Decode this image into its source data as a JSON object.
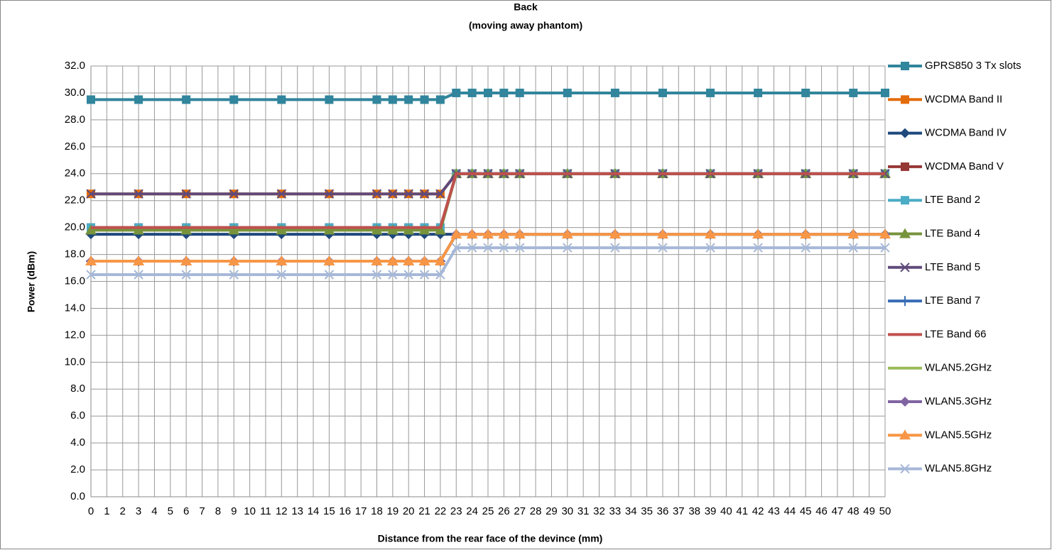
{
  "chart_data": {
    "type": "line",
    "title": "Back",
    "subtitle": "(moving away phantom)",
    "x_label": "Distance from the rear face of the devince (mm)",
    "y_label": "Power (dBm)",
    "x": [
      0,
      3,
      6,
      9,
      12,
      15,
      18,
      19,
      20,
      21,
      22,
      23,
      24,
      25,
      26,
      27,
      30,
      33,
      36,
      39,
      42,
      45,
      48,
      50
    ],
    "xlim": [
      0,
      50
    ],
    "xticks": [
      0,
      1,
      2,
      3,
      4,
      5,
      6,
      7,
      8,
      9,
      10,
      11,
      12,
      13,
      14,
      15,
      16,
      17,
      18,
      19,
      20,
      21,
      22,
      23,
      24,
      25,
      26,
      27,
      28,
      29,
      30,
      31,
      32,
      33,
      34,
      35,
      36,
      37,
      38,
      39,
      40,
      41,
      42,
      43,
      44,
      45,
      46,
      47,
      48,
      49,
      50
    ],
    "ylim": [
      0,
      32
    ],
    "yticks": [
      {
        "value": 0,
        "label": "0.0"
      },
      {
        "value": 2,
        "label": "2.0"
      },
      {
        "value": 4,
        "label": "4.0"
      },
      {
        "value": 6,
        "label": "6.0"
      },
      {
        "value": 8,
        "label": "8.0"
      },
      {
        "value": 10,
        "label": "10.0"
      },
      {
        "value": 12,
        "label": "12.0"
      },
      {
        "value": 14,
        "label": "14.0"
      },
      {
        "value": 16,
        "label": "16.0"
      },
      {
        "value": 18,
        "label": "18.0"
      },
      {
        "value": 20,
        "label": "20.0"
      },
      {
        "value": 22,
        "label": "22.0"
      },
      {
        "value": 24,
        "label": "24.0"
      },
      {
        "value": 26,
        "label": "26.0"
      },
      {
        "value": 28,
        "label": "28.0"
      },
      {
        "value": 30,
        "label": "30.0"
      },
      {
        "value": 32,
        "label": "32.0"
      }
    ],
    "grid": true,
    "legend": "right",
    "series": [
      {
        "name": "GPRS850 3 Tx slots",
        "color": "#31859c",
        "marker": "square",
        "values": [
          29.5,
          29.5,
          29.5,
          29.5,
          29.5,
          29.5,
          29.5,
          29.5,
          29.5,
          29.5,
          29.5,
          30,
          30,
          30,
          30,
          30,
          30,
          30,
          30,
          30,
          30,
          30,
          30,
          30
        ]
      },
      {
        "name": "WCDMA Band II",
        "color": "#e36c09",
        "marker": "square",
        "values": [
          22.5,
          22.5,
          22.5,
          22.5,
          22.5,
          22.5,
          22.5,
          22.5,
          22.5,
          22.5,
          22.5,
          24,
          24,
          24,
          24,
          24,
          24,
          24,
          24,
          24,
          24,
          24,
          24,
          24
        ]
      },
      {
        "name": "WCDMA Band IV",
        "color": "#1f497d",
        "marker": "diamond",
        "values": [
          19.5,
          19.5,
          19.5,
          19.5,
          19.5,
          19.5,
          19.5,
          19.5,
          19.5,
          19.5,
          19.5,
          19.5,
          19.5,
          19.5,
          19.5,
          19.5,
          19.5,
          19.5,
          19.5,
          19.5,
          19.5,
          19.5,
          19.5,
          19.5
        ]
      },
      {
        "name": "WCDMA Band V",
        "color": "#953735",
        "marker": "square",
        "values": [
          20,
          20,
          20,
          20,
          20,
          20,
          20,
          20,
          20,
          20,
          20,
          24,
          24,
          24,
          24,
          24,
          24,
          24,
          24,
          24,
          24,
          24,
          24,
          24
        ]
      },
      {
        "name": "LTE Band 2",
        "color": "#4bacc6",
        "marker": "square",
        "values": [
          20,
          20,
          20,
          20,
          20,
          20,
          20,
          20,
          20,
          20,
          20,
          24,
          24,
          24,
          24,
          24,
          24,
          24,
          24,
          24,
          24,
          24,
          24,
          24
        ]
      },
      {
        "name": "LTE Band 4",
        "color": "#77933c",
        "marker": "triangle",
        "values": [
          19.8,
          19.8,
          19.8,
          19.8,
          19.8,
          19.8,
          19.8,
          19.8,
          19.8,
          19.8,
          19.8,
          24,
          24,
          24,
          24,
          24,
          24,
          24,
          24,
          24,
          24,
          24,
          24,
          24
        ]
      },
      {
        "name": "LTE Band 5",
        "color": "#604a7b",
        "marker": "x",
        "values": [
          22.5,
          22.5,
          22.5,
          22.5,
          22.5,
          22.5,
          22.5,
          22.5,
          22.5,
          22.5,
          22.5,
          24,
          24,
          24,
          24,
          24,
          24,
          24,
          24,
          24,
          24,
          24,
          24,
          24
        ]
      },
      {
        "name": "LTE Band 7",
        "color": "#376db5",
        "marker": "plus",
        "values": [
          17.5,
          17.5,
          17.5,
          17.5,
          17.5,
          17.5,
          17.5,
          17.5,
          17.5,
          17.5,
          17.5,
          19.5,
          19.5,
          19.5,
          19.5,
          19.5,
          19.5,
          19.5,
          19.5,
          19.5,
          19.5,
          19.5,
          19.5,
          19.5
        ]
      },
      {
        "name": "LTE Band 66",
        "color": "#c0504d",
        "marker": "none",
        "values": [
          20,
          20,
          20,
          20,
          20,
          20,
          20,
          20,
          20,
          20,
          20,
          24,
          24,
          24,
          24,
          24,
          24,
          24,
          24,
          24,
          24,
          24,
          24,
          24
        ]
      },
      {
        "name": "WLAN5.2GHz",
        "color": "#9bbb59",
        "marker": "none",
        "values": [
          17.5,
          17.5,
          17.5,
          17.5,
          17.5,
          17.5,
          17.5,
          17.5,
          17.5,
          17.5,
          17.5,
          19.5,
          19.5,
          19.5,
          19.5,
          19.5,
          19.5,
          19.5,
          19.5,
          19.5,
          19.5,
          19.5,
          19.5,
          19.5
        ]
      },
      {
        "name": "WLAN5.3GHz",
        "color": "#8064a2",
        "marker": "diamond",
        "values": [
          17.5,
          17.5,
          17.5,
          17.5,
          17.5,
          17.5,
          17.5,
          17.5,
          17.5,
          17.5,
          17.5,
          19.5,
          19.5,
          19.5,
          19.5,
          19.5,
          19.5,
          19.5,
          19.5,
          19.5,
          19.5,
          19.5,
          19.5,
          19.5
        ]
      },
      {
        "name": "WLAN5.5GHz",
        "color": "#f79646",
        "marker": "triangle",
        "values": [
          17.5,
          17.5,
          17.5,
          17.5,
          17.5,
          17.5,
          17.5,
          17.5,
          17.5,
          17.5,
          17.5,
          19.5,
          19.5,
          19.5,
          19.5,
          19.5,
          19.5,
          19.5,
          19.5,
          19.5,
          19.5,
          19.5,
          19.5,
          19.5
        ]
      },
      {
        "name": "WLAN5.8GHz",
        "color": "#a6b8d8",
        "marker": "x",
        "values": [
          16.5,
          16.5,
          16.5,
          16.5,
          16.5,
          16.5,
          16.5,
          16.5,
          16.5,
          16.5,
          16.5,
          18.5,
          18.5,
          18.5,
          18.5,
          18.5,
          18.5,
          18.5,
          18.5,
          18.5,
          18.5,
          18.5,
          18.5,
          18.5
        ]
      }
    ]
  }
}
